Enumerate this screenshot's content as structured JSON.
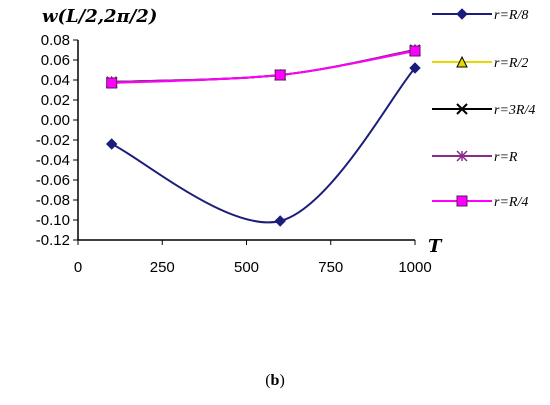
{
  "caption": {
    "open": "(",
    "letter": "b",
    "close": ")"
  },
  "chart_data": {
    "type": "line",
    "title": "",
    "ylabel": "w(L/2,2π/2)",
    "xlabel": "T",
    "xlim": [
      0,
      1000
    ],
    "ylim": [
      -0.12,
      0.08
    ],
    "xticks": [
      0,
      250,
      500,
      750,
      1000
    ],
    "yticks": [
      -0.12,
      -0.1,
      -0.08,
      -0.06,
      -0.04,
      -0.02,
      0.0,
      0.02,
      0.04,
      0.06,
      0.08
    ],
    "ytick_labels": [
      "-0.12",
      "-0.10",
      "-0.08",
      "-0.06",
      "-0.04",
      "-0.02",
      "0.00",
      "0.02",
      "0.04",
      "0.06",
      "0.08"
    ],
    "grid": false,
    "legend_position": "right",
    "x": [
      100,
      600,
      1000
    ],
    "series": [
      {
        "name": "r=R/8",
        "values": [
          -0.024,
          -0.101,
          0.052
        ],
        "color": "#1c1c7a",
        "marker": "diamond"
      },
      {
        "name": "r=R/2",
        "values": [
          0.038,
          0.045,
          0.07
        ],
        "color": "#e6d800",
        "marker": "triangle"
      },
      {
        "name": "r=3R/4",
        "values": [
          0.038,
          0.045,
          0.07
        ],
        "color": "#000000",
        "marker": "x"
      },
      {
        "name": "r=R",
        "values": [
          0.038,
          0.045,
          0.07
        ],
        "color": "#8b2a8b",
        "marker": "star"
      },
      {
        "name": "r=R/4",
        "values": [
          0.037,
          0.045,
          0.069
        ],
        "color": "#ff00ff",
        "marker": "square"
      }
    ]
  }
}
